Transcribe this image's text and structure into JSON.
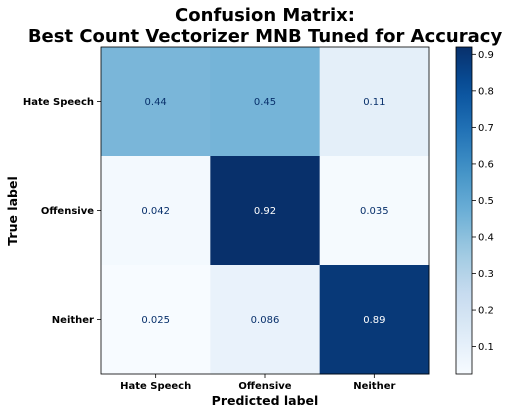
{
  "chart_data": {
    "type": "heatmap",
    "title_line1": "Confusion Matrix:",
    "title_line2": "Best Count Vectorizer MNB Tuned for Accuracy",
    "xlabel": "Predicted label",
    "ylabel": "True label",
    "x_categories": [
      "Hate Speech",
      "Offensive",
      "Neither"
    ],
    "y_categories": [
      "Hate Speech",
      "Offensive",
      "Neither"
    ],
    "values": [
      [
        0.44,
        0.45,
        0.11
      ],
      [
        0.042,
        0.92,
        0.035
      ],
      [
        0.025,
        0.086,
        0.89
      ]
    ],
    "value_labels": [
      [
        "0.44",
        "0.45",
        "0.11"
      ],
      [
        "0.042",
        "0.92",
        "0.035"
      ],
      [
        "0.025",
        "0.086",
        "0.89"
      ]
    ],
    "colormap": "Blues",
    "colorbar_range": [
      0.025,
      0.92
    ],
    "colorbar_ticks": [
      0.1,
      0.2,
      0.3,
      0.4,
      0.5,
      0.6,
      0.7,
      0.8,
      0.9
    ],
    "colorbar_tick_labels": [
      "0.1",
      "0.2",
      "0.3",
      "0.4",
      "0.5",
      "0.6",
      "0.7",
      "0.8",
      "0.9"
    ],
    "grid": false
  }
}
